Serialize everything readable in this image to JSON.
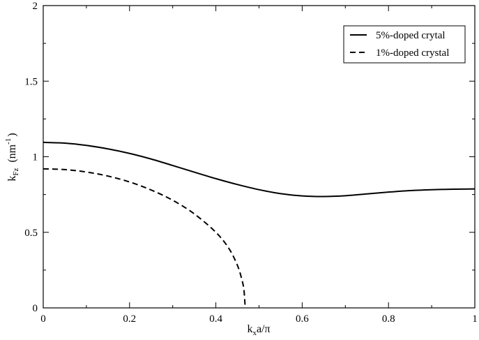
{
  "chart_data": {
    "type": "line",
    "title": "",
    "xlabel": {
      "main": "k",
      "sub": "x",
      "rest": "a/π"
    },
    "ylabel": {
      "main": "k",
      "sub": "Fz",
      "unit_prefix": "(nm",
      "sup": "-1",
      "unit_suffix": ")"
    },
    "xlim": [
      0,
      1
    ],
    "ylim": [
      0,
      2
    ],
    "xticks": [
      "0",
      "0.2",
      "0.4",
      "0.6",
      "0.8",
      "1"
    ],
    "yticks": [
      "0",
      "0.5",
      "1",
      "1.5",
      "2"
    ],
    "grid": false,
    "legend_position": "top-right",
    "series": [
      {
        "name": "5%-doped crytal",
        "style": "solid",
        "color": "#000000",
        "x": [
          0,
          0.05,
          0.1,
          0.15,
          0.2,
          0.25,
          0.3,
          0.35,
          0.4,
          0.45,
          0.5,
          0.55,
          0.6,
          0.65,
          0.7,
          0.75,
          0.8,
          0.85,
          0.9,
          0.95,
          1.0
        ],
        "y": [
          1.095,
          1.09,
          1.075,
          1.052,
          1.022,
          0.985,
          0.942,
          0.898,
          0.855,
          0.816,
          0.782,
          0.756,
          0.741,
          0.737,
          0.742,
          0.754,
          0.766,
          0.776,
          0.782,
          0.785,
          0.787
        ]
      },
      {
        "name": "1%-doped crystal",
        "style": "dashed",
        "color": "#000000",
        "x": [
          0,
          0.05,
          0.1,
          0.15,
          0.2,
          0.25,
          0.3,
          0.35,
          0.4,
          0.43,
          0.45,
          0.46,
          0.465,
          0.468
        ],
        "y": [
          0.92,
          0.915,
          0.899,
          0.872,
          0.833,
          0.78,
          0.712,
          0.622,
          0.5,
          0.394,
          0.281,
          0.19,
          0.12,
          0.0
        ]
      }
    ]
  }
}
